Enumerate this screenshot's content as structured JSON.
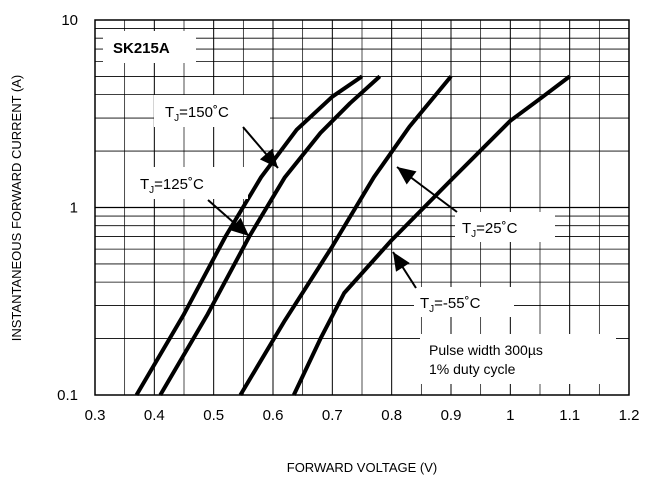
{
  "chart_data": {
    "type": "line",
    "title": "",
    "xlabel": "FORWARD VOLTAGE (V)",
    "ylabel": "INSTANTANEOUS FORWARD CURRENT (A)",
    "xlim": [
      0.3,
      1.2
    ],
    "ylim": [
      0.1,
      10
    ],
    "y_scale": "log",
    "grid": true,
    "x_ticks": [
      "0.3",
      "0.4",
      "0.5",
      "0.6",
      "0.7",
      "0.8",
      "0.9",
      "1",
      "1.1",
      "1.2"
    ],
    "y_ticks": [
      "0.1",
      "1",
      "10"
    ],
    "device_label": "SK215A",
    "note_lines": [
      "Pulse width 300µs",
      "1% duty cycle"
    ],
    "series": [
      {
        "tag_main": "T",
        "tag_sub": "J",
        "tag_rest": "=150˚C",
        "points": [
          [
            0.37,
            0.1
          ],
          [
            0.45,
            0.27
          ],
          [
            0.52,
            0.7
          ],
          [
            0.58,
            1.45
          ],
          [
            0.64,
            2.6
          ],
          [
            0.7,
            3.9
          ],
          [
            0.75,
            5.0
          ]
        ]
      },
      {
        "tag_main": "T",
        "tag_sub": "J",
        "tag_rest": "=125˚C",
        "points": [
          [
            0.41,
            0.1
          ],
          [
            0.49,
            0.27
          ],
          [
            0.56,
            0.7
          ],
          [
            0.62,
            1.45
          ],
          [
            0.68,
            2.5
          ],
          [
            0.73,
            3.6
          ],
          [
            0.78,
            5.0
          ]
        ]
      },
      {
        "tag_main": "T",
        "tag_sub": "J",
        "tag_rest": "=25˚C",
        "points": [
          [
            0.545,
            0.1
          ],
          [
            0.62,
            0.25
          ],
          [
            0.7,
            0.62
          ],
          [
            0.77,
            1.45
          ],
          [
            0.83,
            2.7
          ],
          [
            0.9,
            5.0
          ]
        ]
      },
      {
        "tag_main": "T",
        "tag_sub": "J",
        "tag_rest": "=-55˚C",
        "points": [
          [
            0.635,
            0.1
          ],
          [
            0.68,
            0.2
          ],
          [
            0.72,
            0.35
          ],
          [
            0.8,
            0.67
          ],
          [
            0.9,
            1.4
          ],
          [
            1.0,
            2.9
          ],
          [
            1.05,
            3.8
          ],
          [
            1.1,
            5.0
          ]
        ]
      }
    ]
  }
}
